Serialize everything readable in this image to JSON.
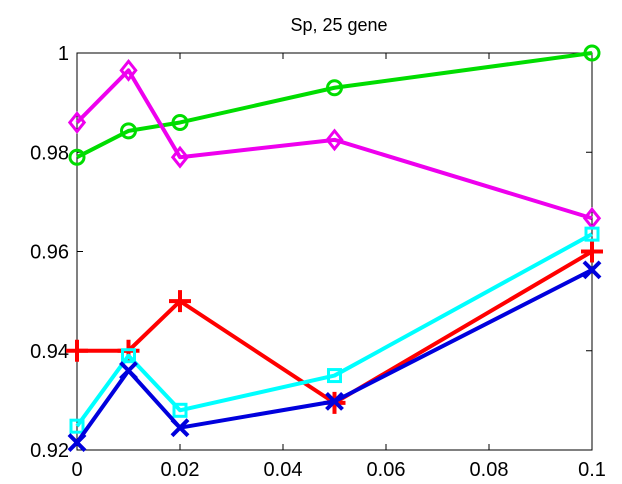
{
  "chart_data": {
    "type": "line",
    "title": "Sp, 25 gene",
    "xlabel": "",
    "ylabel": "",
    "xlim": [
      0,
      0.1
    ],
    "ylim": [
      0.92,
      1.0
    ],
    "x_ticks": [
      0,
      0.02,
      0.04,
      0.06,
      0.08,
      0.1
    ],
    "x_tick_labels": [
      "0",
      "0.02",
      "0.04",
      "0.06",
      "0.08",
      "0.1"
    ],
    "y_ticks": [
      0.92,
      0.94,
      0.96,
      0.98,
      1.0
    ],
    "y_tick_labels": [
      "0.92",
      "0.94",
      "0.96",
      "0.98",
      "1"
    ],
    "grid": false,
    "x": [
      0,
      0.01,
      0.02,
      0.05,
      0.1
    ],
    "series": [
      {
        "color": "#00dd00",
        "marker": "circle",
        "values": [
          0.979,
          0.9843,
          0.986,
          0.993,
          1.0
        ]
      },
      {
        "color": "#ee00ee",
        "marker": "diamond",
        "values": [
          0.986,
          0.9965,
          0.979,
          0.9825,
          0.9667
        ]
      },
      {
        "color": "#ff0000",
        "marker": "plus",
        "values": [
          0.94,
          0.94,
          0.95,
          0.9295,
          0.96
        ]
      },
      {
        "color": "#00ffff",
        "marker": "square",
        "values": [
          0.9248,
          0.939,
          0.928,
          0.935,
          0.9635
        ]
      },
      {
        "color": "#0000dd",
        "marker": "x",
        "values": [
          0.9215,
          0.936,
          0.9245,
          0.9298,
          0.9563
        ]
      }
    ]
  }
}
